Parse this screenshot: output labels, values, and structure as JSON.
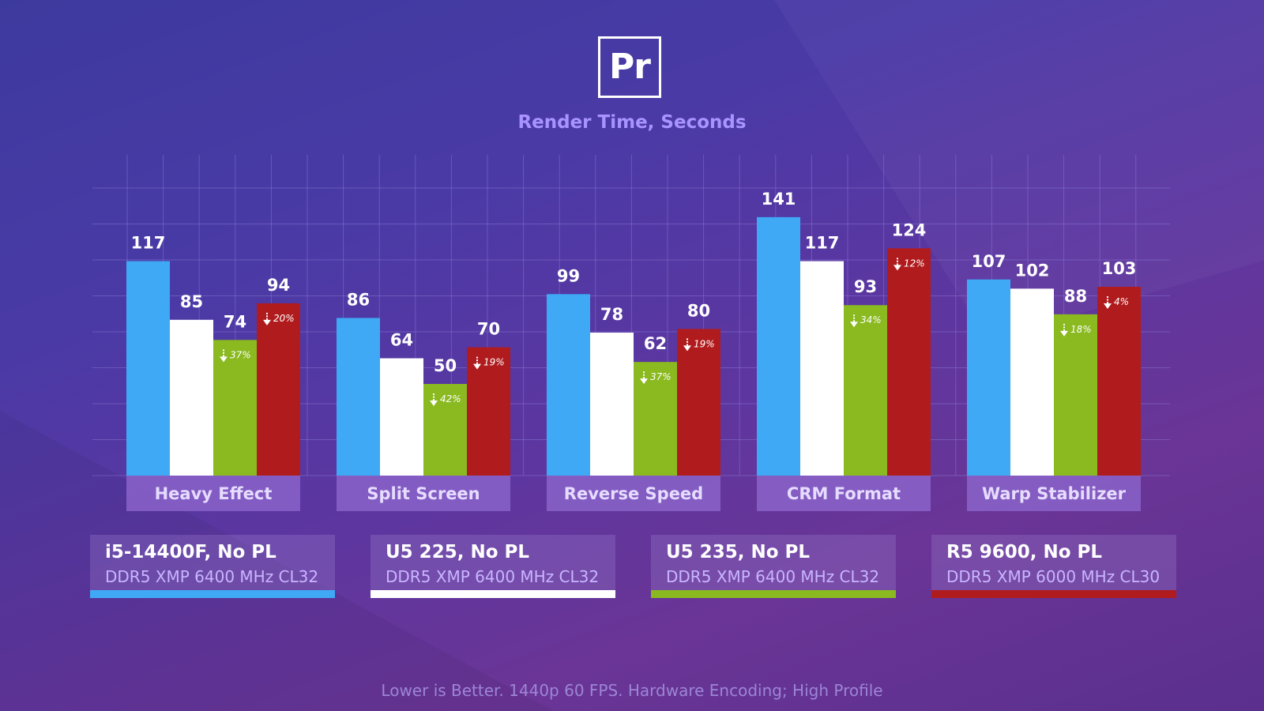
{
  "logo": {
    "text": "Pr",
    "icon": "premiere-pro-logo-icon"
  },
  "chart_data": {
    "type": "bar",
    "title": "Render Time, Seconds",
    "xlabel": "",
    "ylabel": "",
    "ylim": [
      0,
      175
    ],
    "grid": true,
    "categories": [
      "Heavy Effect",
      "Split Screen",
      "Reverse Speed",
      "CRM Format",
      "Warp Stabilizer"
    ],
    "series": [
      {
        "name": "i5-14400F, No PL",
        "subtitle": "DDR5 XMP 6400 MHz CL32",
        "color": "#3fa9f5",
        "values": [
          117,
          86,
          99,
          141,
          107
        ],
        "annotations": []
      },
      {
        "name": "U5 225, No PL",
        "subtitle": "DDR5 XMP 6400 MHz CL32",
        "color": "#ffffff",
        "values": [
          85,
          64,
          78,
          117,
          102
        ],
        "annotations": []
      },
      {
        "name": "U5 235, No PL",
        "subtitle": "DDR5 XMP 6400 MHz CL32",
        "color": "#8ab920",
        "values": [
          74,
          50,
          62,
          93,
          88
        ],
        "annotations": [
          "37%",
          "42%",
          "37%",
          "34%",
          "18%"
        ]
      },
      {
        "name": "R5 9600, No PL",
        "subtitle": "DDR5 XMP 6000 MHz CL30",
        "color": "#b01c1e",
        "values": [
          94,
          70,
          80,
          124,
          103
        ],
        "annotations": [
          "20%",
          "19%",
          "19%",
          "12%",
          "4%"
        ]
      }
    ],
    "legend": "bottom",
    "footnote": "Lower is Better. 1440p 60 FPS. Hardware Encoding; High Profile"
  },
  "colors": {
    "category_box": "#8a63c9",
    "grid": "#8f7fd6"
  }
}
